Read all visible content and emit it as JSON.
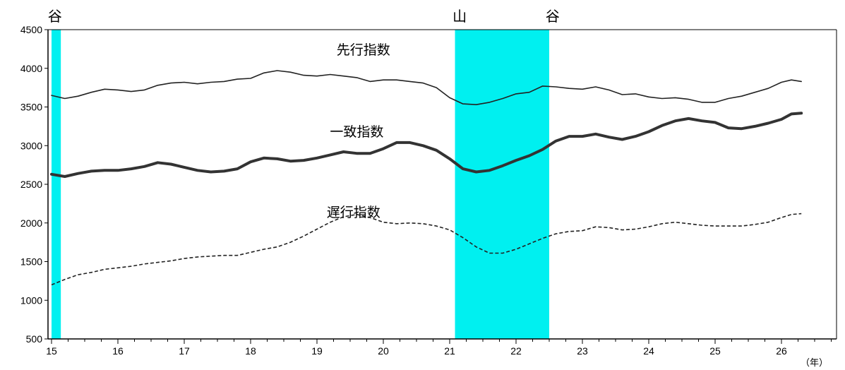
{
  "chart_data": {
    "type": "line",
    "title": "",
    "xlabel": "",
    "ylabel": "",
    "x_unit_label": "（年）",
    "xlim": [
      15,
      26.9
    ],
    "ylim": [
      500,
      4500
    ],
    "y_ticks": [
      500,
      1000,
      1500,
      2000,
      2500,
      3000,
      3500,
      4000,
      4500
    ],
    "x_ticks": [
      {
        "value": 15,
        "label": "15"
      },
      {
        "value": 16,
        "label": "16"
      },
      {
        "value": 17,
        "label": "17"
      },
      {
        "value": 18,
        "label": "18"
      },
      {
        "value": 19,
        "label": "19"
      },
      {
        "value": 20,
        "label": "20"
      },
      {
        "value": 21,
        "label": "21"
      },
      {
        "value": 22,
        "label": "22"
      },
      {
        "value": 23,
        "label": "23"
      },
      {
        "value": 24,
        "label": "24"
      },
      {
        "value": 25,
        "label": "25"
      },
      {
        "value": 26,
        "label": "26"
      }
    ],
    "recession_bands": [
      {
        "start": 15.0,
        "end": 15.14
      },
      {
        "start": 21.08,
        "end": 22.5
      }
    ],
    "phase_labels": [
      {
        "x": 15.05,
        "label": "谷"
      },
      {
        "x": 21.15,
        "label": "山"
      },
      {
        "x": 22.55,
        "label": "谷"
      }
    ],
    "series": [
      {
        "name": "先行指数",
        "style": "thin",
        "label_at": {
          "x": 19.7,
          "y": 4180
        },
        "points": [
          [
            15.0,
            3650
          ],
          [
            15.2,
            3610
          ],
          [
            15.4,
            3640
          ],
          [
            15.6,
            3690
          ],
          [
            15.8,
            3730
          ],
          [
            16.0,
            3720
          ],
          [
            16.2,
            3700
          ],
          [
            16.4,
            3720
          ],
          [
            16.6,
            3780
          ],
          [
            16.8,
            3810
          ],
          [
            17.0,
            3820
          ],
          [
            17.2,
            3800
          ],
          [
            17.4,
            3820
          ],
          [
            17.6,
            3830
          ],
          [
            17.8,
            3860
          ],
          [
            18.0,
            3870
          ],
          [
            18.2,
            3940
          ],
          [
            18.4,
            3970
          ],
          [
            18.6,
            3950
          ],
          [
            18.8,
            3910
          ],
          [
            19.0,
            3900
          ],
          [
            19.2,
            3920
          ],
          [
            19.4,
            3900
          ],
          [
            19.6,
            3880
          ],
          [
            19.8,
            3830
          ],
          [
            20.0,
            3850
          ],
          [
            20.2,
            3850
          ],
          [
            20.4,
            3830
          ],
          [
            20.6,
            3810
          ],
          [
            20.8,
            3750
          ],
          [
            21.0,
            3620
          ],
          [
            21.2,
            3540
          ],
          [
            21.4,
            3530
          ],
          [
            21.6,
            3560
          ],
          [
            21.8,
            3610
          ],
          [
            22.0,
            3670
          ],
          [
            22.2,
            3690
          ],
          [
            22.4,
            3770
          ],
          [
            22.6,
            3760
          ],
          [
            22.8,
            3740
          ],
          [
            23.0,
            3730
          ],
          [
            23.2,
            3760
          ],
          [
            23.4,
            3720
          ],
          [
            23.6,
            3660
          ],
          [
            23.8,
            3670
          ],
          [
            24.0,
            3630
          ],
          [
            24.2,
            3610
          ],
          [
            24.4,
            3620
          ],
          [
            24.6,
            3600
          ],
          [
            24.8,
            3560
          ],
          [
            25.0,
            3560
          ],
          [
            25.2,
            3610
          ],
          [
            25.4,
            3640
          ],
          [
            25.6,
            3690
          ],
          [
            25.8,
            3740
          ],
          [
            26.0,
            3820
          ],
          [
            26.15,
            3850
          ],
          [
            26.3,
            3830
          ]
        ]
      },
      {
        "name": "一致指数",
        "style": "thick",
        "label_at": {
          "x": 19.6,
          "y": 3120
        },
        "points": [
          [
            15.0,
            2630
          ],
          [
            15.2,
            2600
          ],
          [
            15.4,
            2640
          ],
          [
            15.6,
            2670
          ],
          [
            15.8,
            2680
          ],
          [
            16.0,
            2680
          ],
          [
            16.2,
            2700
          ],
          [
            16.4,
            2730
          ],
          [
            16.6,
            2780
          ],
          [
            16.8,
            2760
          ],
          [
            17.0,
            2720
          ],
          [
            17.2,
            2680
          ],
          [
            17.4,
            2660
          ],
          [
            17.6,
            2670
          ],
          [
            17.8,
            2700
          ],
          [
            18.0,
            2790
          ],
          [
            18.2,
            2840
          ],
          [
            18.4,
            2830
          ],
          [
            18.6,
            2800
          ],
          [
            18.8,
            2810
          ],
          [
            19.0,
            2840
          ],
          [
            19.2,
            2880
          ],
          [
            19.4,
            2920
          ],
          [
            19.6,
            2900
          ],
          [
            19.8,
            2900
          ],
          [
            20.0,
            2960
          ],
          [
            20.2,
            3040
          ],
          [
            20.4,
            3040
          ],
          [
            20.6,
            3000
          ],
          [
            20.8,
            2940
          ],
          [
            21.0,
            2830
          ],
          [
            21.2,
            2700
          ],
          [
            21.4,
            2660
          ],
          [
            21.6,
            2680
          ],
          [
            21.8,
            2740
          ],
          [
            22.0,
            2810
          ],
          [
            22.2,
            2870
          ],
          [
            22.4,
            2950
          ],
          [
            22.6,
            3060
          ],
          [
            22.8,
            3120
          ],
          [
            23.0,
            3120
          ],
          [
            23.2,
            3150
          ],
          [
            23.4,
            3110
          ],
          [
            23.6,
            3080
          ],
          [
            23.8,
            3120
          ],
          [
            24.0,
            3180
          ],
          [
            24.2,
            3260
          ],
          [
            24.4,
            3320
          ],
          [
            24.6,
            3350
          ],
          [
            24.8,
            3320
          ],
          [
            25.0,
            3300
          ],
          [
            25.2,
            3230
          ],
          [
            25.4,
            3220
          ],
          [
            25.6,
            3250
          ],
          [
            25.8,
            3290
          ],
          [
            26.0,
            3340
          ],
          [
            26.15,
            3410
          ],
          [
            26.3,
            3420
          ]
        ]
      },
      {
        "name": "遅行指数",
        "style": "dashed",
        "label_at": {
          "x": 19.55,
          "y": 2080
        },
        "points": [
          [
            15.0,
            1200
          ],
          [
            15.2,
            1270
          ],
          [
            15.4,
            1330
          ],
          [
            15.6,
            1360
          ],
          [
            15.8,
            1400
          ],
          [
            16.0,
            1420
          ],
          [
            16.2,
            1440
          ],
          [
            16.4,
            1470
          ],
          [
            16.6,
            1490
          ],
          [
            16.8,
            1510
          ],
          [
            17.0,
            1540
          ],
          [
            17.2,
            1560
          ],
          [
            17.4,
            1570
          ],
          [
            17.6,
            1580
          ],
          [
            17.8,
            1580
          ],
          [
            18.0,
            1620
          ],
          [
            18.2,
            1660
          ],
          [
            18.4,
            1690
          ],
          [
            18.6,
            1750
          ],
          [
            18.8,
            1830
          ],
          [
            19.0,
            1920
          ],
          [
            19.2,
            2010
          ],
          [
            19.4,
            2080
          ],
          [
            19.6,
            2110
          ],
          [
            19.8,
            2070
          ],
          [
            20.0,
            2010
          ],
          [
            20.2,
            1990
          ],
          [
            20.4,
            2000
          ],
          [
            20.6,
            1990
          ],
          [
            20.8,
            1960
          ],
          [
            21.0,
            1910
          ],
          [
            21.2,
            1810
          ],
          [
            21.4,
            1690
          ],
          [
            21.6,
            1610
          ],
          [
            21.8,
            1610
          ],
          [
            22.0,
            1660
          ],
          [
            22.2,
            1730
          ],
          [
            22.4,
            1800
          ],
          [
            22.6,
            1860
          ],
          [
            22.8,
            1890
          ],
          [
            23.0,
            1900
          ],
          [
            23.2,
            1950
          ],
          [
            23.4,
            1940
          ],
          [
            23.6,
            1910
          ],
          [
            23.8,
            1920
          ],
          [
            24.0,
            1950
          ],
          [
            24.2,
            1990
          ],
          [
            24.4,
            2010
          ],
          [
            24.6,
            1990
          ],
          [
            24.8,
            1970
          ],
          [
            25.0,
            1960
          ],
          [
            25.2,
            1960
          ],
          [
            25.4,
            1960
          ],
          [
            25.6,
            1980
          ],
          [
            25.8,
            2010
          ],
          [
            26.0,
            2070
          ],
          [
            26.15,
            2110
          ],
          [
            26.3,
            2120
          ]
        ]
      }
    ]
  }
}
